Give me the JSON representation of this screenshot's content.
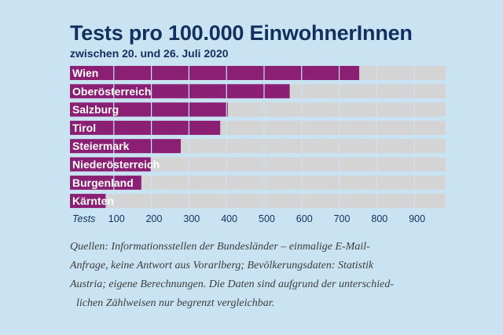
{
  "colors": {
    "background": "#c9e3f3",
    "bar": "#8a1f74",
    "track": "#d4d4d4",
    "title": "#12305e",
    "axis_text": "#12305e",
    "source_text": "#3c3c3c"
  },
  "chart_data": {
    "type": "bar",
    "orientation": "horizontal",
    "title": "Tests pro 100.000 EinwohnerInnen",
    "subtitle": "zwischen 20. und 26. Juli 2020",
    "xlabel": "Tests",
    "ylabel": "",
    "categories": [
      "Wien",
      "Oberösterreich",
      "Salzburg",
      "Tirol",
      "Steiermark",
      "Niederösterreich",
      "Burgenland",
      "Kärnten"
    ],
    "values": [
      770,
      585,
      420,
      400,
      295,
      215,
      190,
      95
    ],
    "xlim": [
      0,
      1000
    ],
    "xticks": [
      100,
      200,
      300,
      400,
      500,
      600,
      700,
      800,
      900
    ],
    "xtick_labels": [
      "100",
      "200",
      "300",
      "400",
      "500",
      "600",
      "700",
      "800",
      "900"
    ],
    "grid": true
  },
  "sources": {
    "lines": [
      "Quellen: Informationsstellen der Bundesländer – einmalige E-Mail-",
      "Anfrage, keine Antwort aus Vorarlberg; Bevölkerungsdaten: Statistik",
      "Austria; eigene Berechnungen. Die Daten sind aufgrund der unterschied-",
      "lichen Zählweisen nur begrenzt vergleichbar."
    ]
  }
}
